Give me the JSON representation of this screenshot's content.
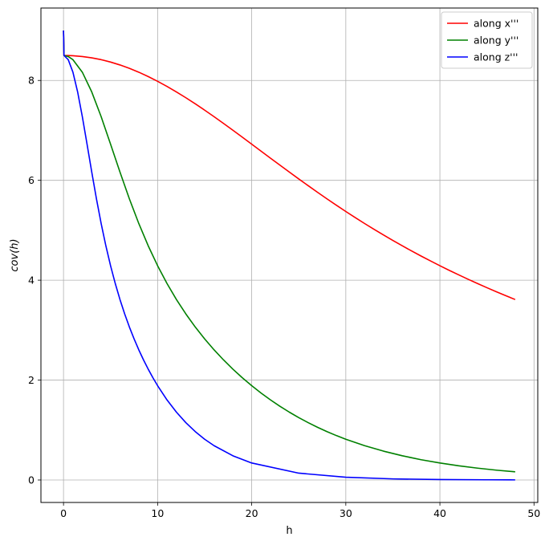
{
  "chart_data": {
    "type": "line",
    "xlabel": "h",
    "ylabel": "cov(h)",
    "xlim": [
      -2.4,
      50.4
    ],
    "ylim": [
      -0.45,
      9.45
    ],
    "xticks": [
      0,
      10,
      20,
      30,
      40,
      50
    ],
    "yticks": [
      0,
      2,
      4,
      6,
      8
    ],
    "grid": true,
    "legend_position": "top-right",
    "series": [
      {
        "name": "along x'''",
        "color": "#ff0000",
        "x": [
          0,
          0.05,
          0.5,
          1,
          2,
          3,
          4,
          5,
          6,
          7,
          8,
          9,
          10,
          11,
          12,
          13,
          14,
          15,
          16,
          17,
          18,
          19,
          20,
          21,
          22,
          23,
          24,
          25,
          26,
          27,
          28,
          29,
          30,
          31,
          32,
          33,
          34,
          35,
          36,
          37,
          38,
          39,
          40,
          41,
          42,
          43,
          44,
          45,
          46,
          47,
          48
        ],
        "y": [
          9.0,
          8.5,
          8.499,
          8.495,
          8.479,
          8.453,
          8.416,
          8.368,
          8.31,
          8.242,
          8.165,
          8.078,
          7.983,
          7.88,
          7.77,
          7.654,
          7.532,
          7.405,
          7.274,
          7.14,
          7.003,
          6.864,
          6.724,
          6.584,
          6.443,
          6.304,
          6.165,
          6.028,
          5.893,
          5.76,
          5.629,
          5.501,
          5.376,
          5.254,
          5.135,
          5.019,
          4.906,
          4.796,
          4.689,
          4.585,
          4.484,
          4.386,
          4.29,
          4.197,
          4.107,
          4.019,
          3.933,
          3.85,
          3.769,
          3.69,
          3.613
        ]
      },
      {
        "name": "along y'''",
        "color": "#008000",
        "x": [
          0,
          0.05,
          0.5,
          1,
          2,
          3,
          4,
          5,
          6,
          7,
          8,
          9,
          10,
          11,
          12,
          13,
          14,
          15,
          16,
          17,
          18,
          19,
          20,
          21,
          22,
          23,
          24,
          25,
          26,
          27,
          28,
          29,
          30,
          32,
          34,
          36,
          38,
          40,
          42,
          44,
          46,
          48
        ],
        "y": [
          9.0,
          8.5,
          8.479,
          8.416,
          8.165,
          7.77,
          7.274,
          6.724,
          6.165,
          5.629,
          5.135,
          4.689,
          4.29,
          3.933,
          3.613,
          3.325,
          3.063,
          2.825,
          2.606,
          2.405,
          2.219,
          2.047,
          1.888,
          1.74,
          1.603,
          1.476,
          1.358,
          1.249,
          1.148,
          1.055,
          0.969,
          0.889,
          0.816,
          0.687,
          0.578,
          0.485,
          0.406,
          0.34,
          0.284,
          0.237,
          0.197,
          0.164
        ]
      },
      {
        "name": "along z'''",
        "color": "#0000ff",
        "x": [
          0,
          0.05,
          0.5,
          1,
          1.5,
          2,
          2.5,
          3,
          3.5,
          4,
          4.5,
          5,
          5.5,
          6,
          6.5,
          7,
          7.5,
          8,
          8.5,
          9,
          9.5,
          10,
          11,
          12,
          13,
          14,
          15,
          16,
          18,
          20,
          25,
          30,
          35,
          40,
          45,
          48
        ],
        "y": [
          9.0,
          8.5,
          8.416,
          8.165,
          7.77,
          7.274,
          6.724,
          6.165,
          5.629,
          5.135,
          4.689,
          4.29,
          3.933,
          3.613,
          3.325,
          3.063,
          2.825,
          2.606,
          2.405,
          2.219,
          2.047,
          1.888,
          1.603,
          1.358,
          1.148,
          0.969,
          0.816,
          0.687,
          0.485,
          0.34,
          0.137,
          0.055,
          0.022,
          0.009,
          0.004,
          0.002
        ]
      }
    ]
  }
}
